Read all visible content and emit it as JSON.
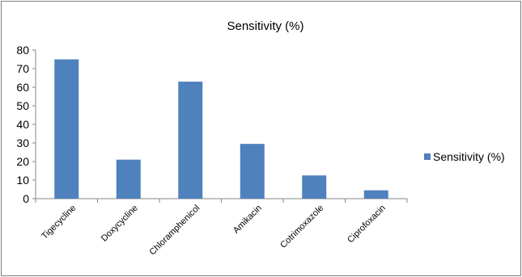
{
  "chart_data": {
    "type": "bar",
    "title": "Sensitivity (%)",
    "xlabel": "",
    "ylabel": "",
    "categories": [
      "Tigecycline",
      "Doxycycline",
      "Chloramphenicol",
      "Amikacin",
      "Cotrimoxazole",
      "Ciprofoxacin"
    ],
    "series": [
      {
        "name": "Sensitivity (%)",
        "values": [
          75,
          21,
          63,
          29.5,
          12.5,
          4.5
        ],
        "color": "#4f81bd"
      }
    ],
    "ylim": [
      0,
      80
    ],
    "yticks": [
      "0",
      "10",
      "20",
      "30",
      "40",
      "50",
      "60",
      "70",
      "80"
    ],
    "grid": false,
    "legend_position": "right"
  }
}
